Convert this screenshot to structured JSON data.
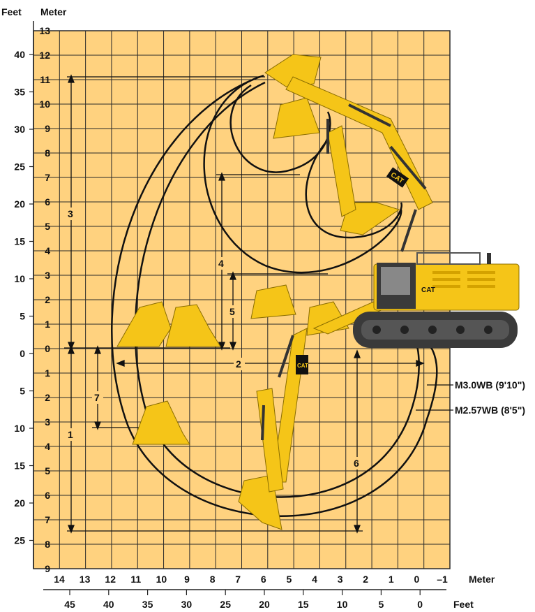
{
  "header": {
    "unit_feet": "Feet",
    "unit_meter": "Meter"
  },
  "left_meter_ticks": [
    "13",
    "12",
    "11",
    "10",
    "9",
    "8",
    "7",
    "6",
    "5",
    "4",
    "3",
    "2",
    "1",
    "0",
    "1",
    "2",
    "3",
    "4",
    "5",
    "6",
    "7",
    "8",
    "9"
  ],
  "left_feet_ticks": [
    "40",
    "35",
    "30",
    "25",
    "20",
    "15",
    "10",
    "5",
    "0",
    "5",
    "10",
    "15",
    "20",
    "25"
  ],
  "bottom_meter_ticks": [
    "14",
    "13",
    "12",
    "11",
    "10",
    "9",
    "8",
    "7",
    "6",
    "5",
    "4",
    "3",
    "2",
    "1",
    "0",
    "–1"
  ],
  "bottom_meter_unit": "Meter",
  "bottom_feet_ticks": [
    "45",
    "40",
    "35",
    "30",
    "25",
    "20",
    "15",
    "10",
    "5",
    "0"
  ],
  "bottom_feet_unit": "Feet",
  "dimension_labels": [
    "1",
    "2",
    "3",
    "4",
    "5",
    "6",
    "7"
  ],
  "boom_labels": {
    "long": "M3.0WB (9'10\")",
    "short": "M2.57WB (8'5\")"
  },
  "brand": "CAT",
  "colors": {
    "grid_bg": "#ffd27f",
    "grid_line": "#2a2a2a",
    "machine": "#f5c518",
    "tracks": "#3a3a3a"
  }
}
